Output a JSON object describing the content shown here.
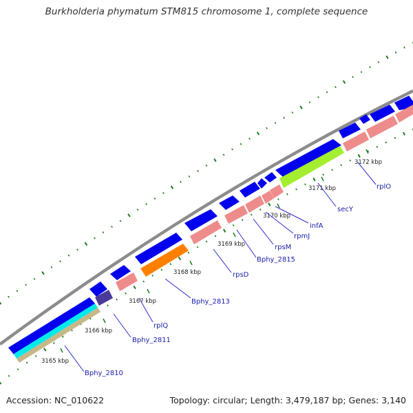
{
  "title": "Burkholderia phymatum STM815 chromosome 1, complete sequence",
  "footer": {
    "accession": "Accession: NC_010622",
    "summary": "Topology: circular; Length: 3,479,187 bp; Genes: 3,140"
  },
  "colors": {
    "backbone": "#8c8c8c",
    "forward_gene": "#0000ee",
    "reverse_gene": "#ee8c8c",
    "tick": "#1a7a1a",
    "label": "#1a1aa8",
    "label_line": "#2a2ad0"
  },
  "kbp_ticks": [
    "3165 kbp",
    "3166 kbp",
    "3167 kbp",
    "3168 kbp",
    "3169 kbp",
    "3170 kbp",
    "3171 kbp",
    "3172 kbp"
  ],
  "gene_labels": [
    "Bphy_2810",
    "Bphy_2811",
    "rplQ",
    "Bphy_2813",
    "rpsD",
    "Bphy_2815",
    "rpsM",
    "rpmJ",
    "infA",
    "secY",
    "rplO"
  ]
}
